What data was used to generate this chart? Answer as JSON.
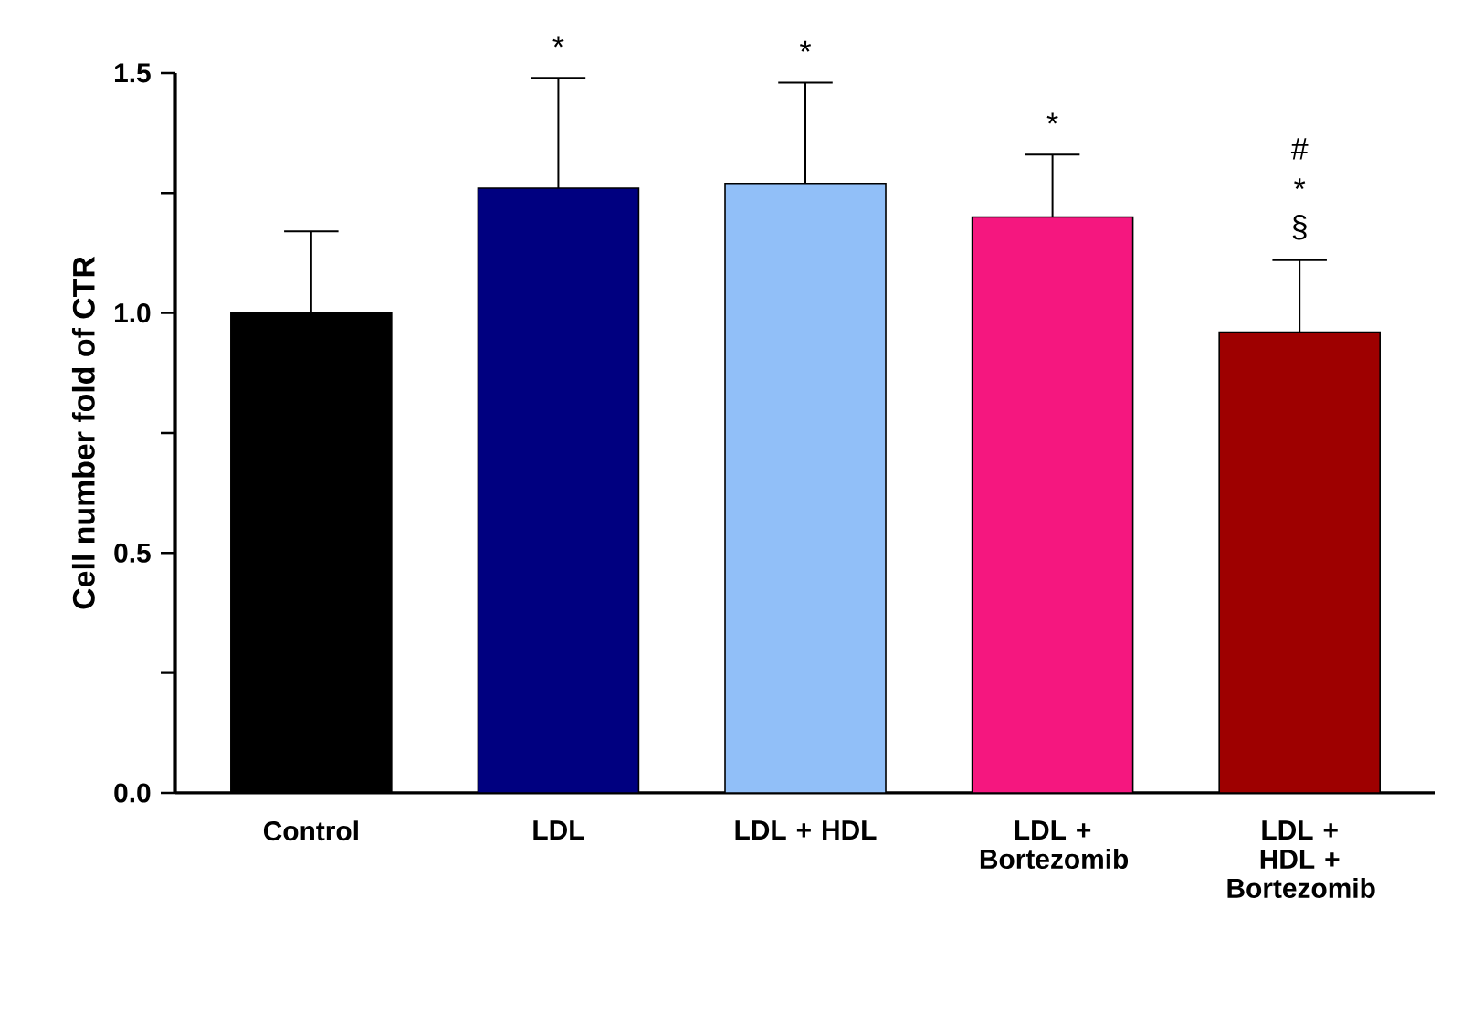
{
  "chart_data": {
    "type": "bar",
    "ylabel": "Cell number fold of CTR",
    "categories": [
      "Control",
      "LDL",
      "LDL + HDL",
      "LDL + Bortezomib",
      "LDL + HDL + Bortezomib"
    ],
    "values": [
      1.0,
      1.26,
      1.27,
      1.2,
      0.96
    ],
    "colors": [
      "#000000",
      "#000080",
      "#91bff8",
      "#f5177f",
      "#9e0000"
    ],
    "errors": [
      [
        1.0,
        1.17
      ],
      [
        1.26,
        1.49
      ],
      [
        1.27,
        1.48
      ],
      [
        1.2,
        1.33
      ],
      [
        0.96,
        1.11
      ]
    ],
    "ylim": [
      0,
      1.5
    ],
    "yticks": [
      {
        "value": 0,
        "label": "0.0"
      },
      {
        "value": 0.25,
        "label": null
      },
      0.5,
      {
        "value": 0.75,
        "label": null
      },
      {
        "value": 1,
        "label": "1.0"
      },
      {
        "value": 1.25,
        "label": null
      },
      1.5
    ],
    "annotations": [
      "*",
      "*",
      "*",
      "#",
      "*",
      "§"
    ],
    "grid": false
  }
}
